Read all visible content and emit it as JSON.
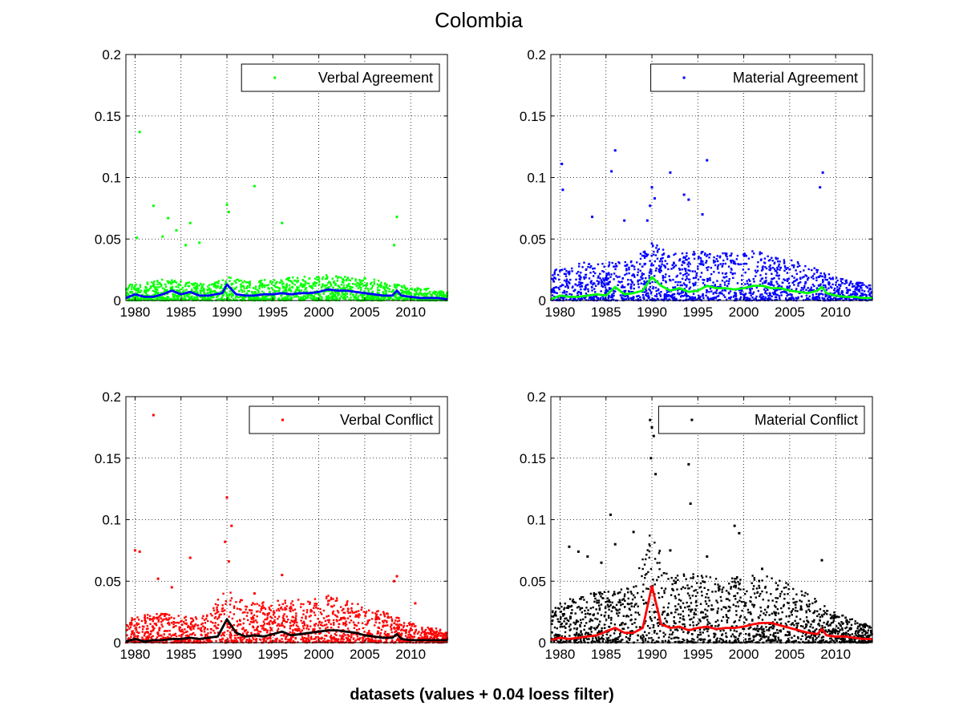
{
  "figure": {
    "title": "Colombia",
    "xlabel": "datasets (values + 0.04 loess filter)"
  },
  "chart_data": [
    {
      "type": "scatter",
      "series": [
        {
          "name": "Verbal Agreement",
          "color": "#00ff00",
          "marker": "point"
        },
        {
          "name": "",
          "color": "#0000ff",
          "kind": "line"
        }
      ],
      "xlim": [
        1979,
        2014
      ],
      "ylim": [
        0,
        0.2
      ],
      "xticks": [
        1980,
        1985,
        1990,
        1995,
        2000,
        2005,
        2010
      ],
      "xtick_labels": [
        "1980",
        "1985",
        "1990",
        "1995",
        "2000",
        "2005",
        "2010"
      ],
      "yticks": [
        0,
        0.05,
        0.1,
        0.15,
        0.2
      ],
      "ytick_labels": [
        "0",
        "0.05",
        "0.1",
        "0.15",
        "0.2"
      ],
      "grid": true,
      "legend": "top-right",
      "typical": [
        [
          1979,
          0.008
        ],
        [
          1981,
          0.009
        ],
        [
          1983,
          0.011
        ],
        [
          1985,
          0.01
        ],
        [
          1988,
          0.008
        ],
        [
          1990,
          0.012
        ],
        [
          1992,
          0.01
        ],
        [
          1995,
          0.011
        ],
        [
          1998,
          0.012
        ],
        [
          2001,
          0.013
        ],
        [
          2004,
          0.012
        ],
        [
          2007,
          0.01
        ],
        [
          2010,
          0.007
        ],
        [
          2012,
          0.006
        ],
        [
          2014,
          0.004
        ]
      ],
      "outliers": [
        [
          1980.5,
          0.137
        ],
        [
          1980.2,
          0.051
        ],
        [
          1982,
          0.077
        ],
        [
          1983.6,
          0.067
        ],
        [
          1984.5,
          0.057
        ],
        [
          1986,
          0.063
        ],
        [
          1987,
          0.047
        ],
        [
          1990,
          0.078
        ],
        [
          1990.2,
          0.072
        ],
        [
          1993,
          0.093
        ],
        [
          1996,
          0.063
        ],
        [
          2008.5,
          0.068
        ],
        [
          2008.2,
          0.045
        ],
        [
          1985.5,
          0.045
        ],
        [
          1983,
          0.052
        ]
      ],
      "smooth": [
        [
          1979,
          0.002
        ],
        [
          1980,
          0.005
        ],
        [
          1981,
          0.003
        ],
        [
          1982,
          0.003
        ],
        [
          1983,
          0.005
        ],
        [
          1984,
          0.008
        ],
        [
          1985,
          0.005
        ],
        [
          1986,
          0.007
        ],
        [
          1987,
          0.004
        ],
        [
          1988,
          0.004
        ],
        [
          1989.5,
          0.006
        ],
        [
          1990,
          0.013
        ],
        [
          1991,
          0.005
        ],
        [
          1992,
          0.004
        ],
        [
          1993,
          0.004
        ],
        [
          1994,
          0.005
        ],
        [
          1995,
          0.005
        ],
        [
          1996,
          0.006
        ],
        [
          1997,
          0.005
        ],
        [
          1998,
          0.006
        ],
        [
          1999,
          0.006
        ],
        [
          2000,
          0.007
        ],
        [
          2001,
          0.009
        ],
        [
          2002,
          0.008
        ],
        [
          2003,
          0.008
        ],
        [
          2004,
          0.007
        ],
        [
          2005,
          0.006
        ],
        [
          2006,
          0.005
        ],
        [
          2007,
          0.004
        ],
        [
          2008,
          0.004
        ],
        [
          2008.5,
          0.008
        ],
        [
          2009,
          0.004
        ],
        [
          2010,
          0.003
        ],
        [
          2011,
          0.002
        ],
        [
          2012,
          0.002
        ],
        [
          2013,
          0.002
        ],
        [
          2014,
          0.001
        ]
      ]
    },
    {
      "type": "scatter",
      "series": [
        {
          "name": "Material Agreement",
          "color": "#0000ff",
          "marker": "point"
        },
        {
          "name": "",
          "color": "#00ff00",
          "kind": "line"
        }
      ],
      "xlim": [
        1979,
        2014
      ],
      "ylim": [
        0,
        0.2
      ],
      "xticks": [
        1980,
        1985,
        1990,
        1995,
        2000,
        2005,
        2010
      ],
      "xtick_labels": [
        "1980",
        "1985",
        "1990",
        "1995",
        "2000",
        "2005",
        "2010"
      ],
      "yticks": [
        0,
        0.05,
        0.1,
        0.15,
        0.2
      ],
      "ytick_labels": [
        "0",
        "0.05",
        "0.1",
        "0.15",
        "0.2"
      ],
      "grid": true,
      "legend": "top-right",
      "typical": [
        [
          1979,
          0.015
        ],
        [
          1981,
          0.018
        ],
        [
          1983,
          0.02
        ],
        [
          1985,
          0.02
        ],
        [
          1988,
          0.02
        ],
        [
          1990,
          0.03
        ],
        [
          1992,
          0.024
        ],
        [
          1995,
          0.025
        ],
        [
          1998,
          0.024
        ],
        [
          2001,
          0.026
        ],
        [
          2004,
          0.022
        ],
        [
          2007,
          0.018
        ],
        [
          2010,
          0.012
        ],
        [
          2012,
          0.01
        ],
        [
          2014,
          0.008
        ]
      ],
      "outliers": [
        [
          1980.2,
          0.111
        ],
        [
          1980.3,
          0.09
        ],
        [
          1986,
          0.122
        ],
        [
          1985.6,
          0.105
        ],
        [
          1989.8,
          0.077
        ],
        [
          1990,
          0.092
        ],
        [
          1990.3,
          0.083
        ],
        [
          1992,
          0.104
        ],
        [
          1993.5,
          0.086
        ],
        [
          1996,
          0.114
        ],
        [
          1994,
          0.082
        ],
        [
          2008.6,
          0.104
        ],
        [
          2008.3,
          0.092
        ],
        [
          1983.5,
          0.068
        ],
        [
          1987,
          0.065
        ],
        [
          1995.5,
          0.07
        ],
        [
          1989.5,
          0.065
        ]
      ],
      "smooth": [
        [
          1979,
          0.001
        ],
        [
          1980,
          0.004
        ],
        [
          1981,
          0.003
        ],
        [
          1982,
          0.003
        ],
        [
          1983,
          0.004
        ],
        [
          1984,
          0.005
        ],
        [
          1985,
          0.004
        ],
        [
          1986,
          0.011
        ],
        [
          1987,
          0.005
        ],
        [
          1988,
          0.006
        ],
        [
          1989,
          0.008
        ],
        [
          1990,
          0.019
        ],
        [
          1991,
          0.012
        ],
        [
          1992,
          0.008
        ],
        [
          1993,
          0.01
        ],
        [
          1994,
          0.007
        ],
        [
          1995,
          0.008
        ],
        [
          1996,
          0.012
        ],
        [
          1997,
          0.01
        ],
        [
          1998,
          0.01
        ],
        [
          1999,
          0.009
        ],
        [
          2000,
          0.01
        ],
        [
          2001,
          0.012
        ],
        [
          2002,
          0.012
        ],
        [
          2003,
          0.01
        ],
        [
          2004,
          0.01
        ],
        [
          2005,
          0.008
        ],
        [
          2006,
          0.007
        ],
        [
          2007,
          0.006
        ],
        [
          2008,
          0.008
        ],
        [
          2008.5,
          0.011
        ],
        [
          2009,
          0.006
        ],
        [
          2010,
          0.004
        ],
        [
          2011,
          0.003
        ],
        [
          2012,
          0.003
        ],
        [
          2013,
          0.002
        ],
        [
          2014,
          0.002
        ]
      ]
    },
    {
      "type": "scatter",
      "series": [
        {
          "name": "Verbal Conflict",
          "color": "#ff0000",
          "marker": "point"
        },
        {
          "name": "",
          "color": "#000000",
          "kind": "line"
        }
      ],
      "xlim": [
        1979,
        2014
      ],
      "ylim": [
        0,
        0.2
      ],
      "xticks": [
        1980,
        1985,
        1990,
        1995,
        2000,
        2005,
        2010
      ],
      "xtick_labels": [
        "1980",
        "1985",
        "1990",
        "1995",
        "2000",
        "2005",
        "2010"
      ],
      "yticks": [
        0,
        0.05,
        0.1,
        0.15,
        0.2
      ],
      "ytick_labels": [
        "0",
        "0.05",
        "0.1",
        "0.15",
        "0.2"
      ],
      "grid": true,
      "legend": "top-right",
      "typical": [
        [
          1979,
          0.012
        ],
        [
          1981,
          0.014
        ],
        [
          1983,
          0.015
        ],
        [
          1985,
          0.014
        ],
        [
          1988,
          0.014
        ],
        [
          1990,
          0.03
        ],
        [
          1992,
          0.02
        ],
        [
          1995,
          0.022
        ],
        [
          1998,
          0.022
        ],
        [
          2001,
          0.024
        ],
        [
          2004,
          0.02
        ],
        [
          2007,
          0.016
        ],
        [
          2010,
          0.01
        ],
        [
          2012,
          0.008
        ],
        [
          2014,
          0.006
        ]
      ],
      "outliers": [
        [
          1982,
          0.185
        ],
        [
          1980,
          0.075
        ],
        [
          1980.5,
          0.074
        ],
        [
          1982.5,
          0.052
        ],
        [
          1986,
          0.069
        ],
        [
          1990,
          0.118
        ],
        [
          1990.5,
          0.095
        ],
        [
          1989.8,
          0.082
        ],
        [
          1990.2,
          0.066
        ],
        [
          1996,
          0.055
        ],
        [
          2008.5,
          0.054
        ],
        [
          2008.2,
          0.05
        ],
        [
          2010.5,
          0.032
        ],
        [
          1984,
          0.045
        ],
        [
          1993,
          0.04
        ]
      ],
      "smooth": [
        [
          1979,
          0.001
        ],
        [
          1980,
          0.003
        ],
        [
          1981,
          0.001
        ],
        [
          1982,
          0.002
        ],
        [
          1983,
          0.002
        ],
        [
          1984,
          0.003
        ],
        [
          1985,
          0.003
        ],
        [
          1986,
          0.004
        ],
        [
          1987,
          0.003
        ],
        [
          1988,
          0.004
        ],
        [
          1989,
          0.005
        ],
        [
          1990,
          0.019
        ],
        [
          1991,
          0.008
        ],
        [
          1992,
          0.005
        ],
        [
          1993,
          0.006
        ],
        [
          1994,
          0.005
        ],
        [
          1995,
          0.007
        ],
        [
          1996,
          0.009
        ],
        [
          1997,
          0.006
        ],
        [
          1998,
          0.007
        ],
        [
          1999,
          0.008
        ],
        [
          2000,
          0.009
        ],
        [
          2001,
          0.01
        ],
        [
          2002,
          0.01
        ],
        [
          2003,
          0.009
        ],
        [
          2004,
          0.008
        ],
        [
          2005,
          0.006
        ],
        [
          2006,
          0.005
        ],
        [
          2007,
          0.004
        ],
        [
          2008,
          0.004
        ],
        [
          2008.5,
          0.007
        ],
        [
          2009,
          0.003
        ],
        [
          2010,
          0.002
        ],
        [
          2011,
          0.002
        ],
        [
          2012,
          0.002
        ],
        [
          2013,
          0.002
        ],
        [
          2014,
          0.002
        ]
      ]
    },
    {
      "type": "scatter",
      "series": [
        {
          "name": "Material Conflict",
          "color": "#000000",
          "marker": "point"
        },
        {
          "name": "",
          "color": "#ff0000",
          "kind": "line"
        }
      ],
      "xlim": [
        1979,
        2014
      ],
      "ylim": [
        0,
        0.2
      ],
      "xticks": [
        1980,
        1985,
        1990,
        1995,
        2000,
        2005,
        2010
      ],
      "xtick_labels": [
        "1980",
        "1985",
        "1990",
        "1995",
        "2000",
        "2005",
        "2010"
      ],
      "yticks": [
        0,
        0.05,
        0.1,
        0.15,
        0.2
      ],
      "ytick_labels": [
        "0",
        "0.05",
        "0.1",
        "0.15",
        "0.2"
      ],
      "grid": true,
      "legend": "top-right",
      "typical": [
        [
          1979,
          0.018
        ],
        [
          1981,
          0.022
        ],
        [
          1983,
          0.025
        ],
        [
          1985,
          0.026
        ],
        [
          1988,
          0.028
        ],
        [
          1990,
          0.06
        ],
        [
          1992,
          0.035
        ],
        [
          1995,
          0.035
        ],
        [
          1998,
          0.033
        ],
        [
          2001,
          0.036
        ],
        [
          2004,
          0.032
        ],
        [
          2007,
          0.025
        ],
        [
          2010,
          0.015
        ],
        [
          2012,
          0.012
        ],
        [
          2014,
          0.008
        ]
      ],
      "outliers": [
        [
          1989.8,
          0.181
        ],
        [
          1990,
          0.175
        ],
        [
          1990.2,
          0.168
        ],
        [
          1989.9,
          0.15
        ],
        [
          1990.4,
          0.137
        ],
        [
          1994,
          0.145
        ],
        [
          1994.2,
          0.113
        ],
        [
          1985.5,
          0.104
        ],
        [
          1986,
          0.08
        ],
        [
          1988,
          0.09
        ],
        [
          1992,
          0.075
        ],
        [
          1999,
          0.095
        ],
        [
          1999.5,
          0.089
        ],
        [
          2008.5,
          0.067
        ],
        [
          1981,
          0.078
        ],
        [
          1982,
          0.074
        ],
        [
          1983,
          0.07
        ],
        [
          1984.5,
          0.065
        ],
        [
          1996,
          0.07
        ],
        [
          2002,
          0.06
        ]
      ],
      "smooth": [
        [
          1979,
          0.002
        ],
        [
          1980,
          0.004
        ],
        [
          1981,
          0.003
        ],
        [
          1982,
          0.004
        ],
        [
          1983,
          0.005
        ],
        [
          1984,
          0.006
        ],
        [
          1985,
          0.009
        ],
        [
          1986,
          0.012
        ],
        [
          1987,
          0.008
        ],
        [
          1988,
          0.008
        ],
        [
          1989,
          0.012
        ],
        [
          1990,
          0.046
        ],
        [
          1991,
          0.015
        ],
        [
          1992,
          0.012
        ],
        [
          1993,
          0.013
        ],
        [
          1994,
          0.01
        ],
        [
          1995,
          0.012
        ],
        [
          1996,
          0.013
        ],
        [
          1997,
          0.011
        ],
        [
          1998,
          0.012
        ],
        [
          1999,
          0.012
        ],
        [
          2000,
          0.013
        ],
        [
          2001,
          0.015
        ],
        [
          2002,
          0.016
        ],
        [
          2003,
          0.016
        ],
        [
          2004,
          0.014
        ],
        [
          2005,
          0.012
        ],
        [
          2006,
          0.01
        ],
        [
          2007,
          0.008
        ],
        [
          2008,
          0.007
        ],
        [
          2008.5,
          0.011
        ],
        [
          2009,
          0.006
        ],
        [
          2010,
          0.005
        ],
        [
          2011,
          0.005
        ],
        [
          2012,
          0.004
        ],
        [
          2013,
          0.003
        ],
        [
          2014,
          0.003
        ]
      ]
    }
  ]
}
